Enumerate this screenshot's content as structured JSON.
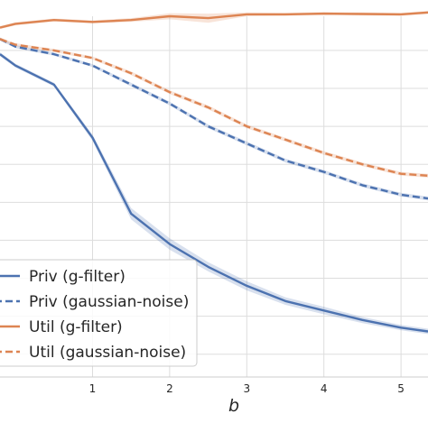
{
  "chart_data": {
    "type": "line",
    "xlabel": "b",
    "ylabel": "",
    "title": "",
    "xlim": [
      -0.2,
      5.35
    ],
    "ylim": [
      0.04,
      0.99
    ],
    "x_ticks": [
      1,
      2,
      3,
      4,
      5
    ],
    "y_grid": [
      0.1,
      0.2,
      0.3,
      0.4,
      0.5,
      0.6,
      0.7,
      0.8,
      0.9
    ],
    "grid": true,
    "legend_position": "lower-left",
    "x": [
      -0.2,
      0.0,
      0.5,
      1.0,
      1.5,
      2.0,
      2.5,
      3.0,
      3.5,
      4.0,
      4.5,
      5.0,
      5.35
    ],
    "series": [
      {
        "name": "Priv (g-filter)",
        "color": "#4c72b0",
        "dash": "solid",
        "values": [
          0.89,
          0.86,
          0.81,
          0.67,
          0.47,
          0.39,
          0.33,
          0.28,
          0.24,
          0.215,
          0.19,
          0.17,
          0.16
        ],
        "band": [
          0.005,
          0.005,
          0.005,
          0.008,
          0.015,
          0.015,
          0.012,
          0.012,
          0.01,
          0.01,
          0.008,
          0.007,
          0.007
        ]
      },
      {
        "name": "Priv (gaussian-noise)",
        "color": "#4c72b0",
        "dash": "dashed",
        "values": [
          0.93,
          0.91,
          0.89,
          0.86,
          0.81,
          0.76,
          0.7,
          0.655,
          0.61,
          0.58,
          0.545,
          0.52,
          0.51
        ],
        "band": [
          0.004,
          0.004,
          0.004,
          0.004,
          0.005,
          0.005,
          0.005,
          0.005,
          0.005,
          0.005,
          0.005,
          0.005,
          0.005
        ]
      },
      {
        "name": "Util (g-filter)",
        "color": "#dd8452",
        "dash": "solid",
        "values": [
          0.96,
          0.97,
          0.98,
          0.975,
          0.98,
          0.99,
          0.985,
          0.995,
          0.995,
          0.997,
          0.996,
          0.995,
          1.0
        ],
        "band": [
          0.004,
          0.004,
          0.004,
          0.004,
          0.005,
          0.008,
          0.012,
          0.005,
          0.004,
          0.004,
          0.004,
          0.004,
          0.004
        ]
      },
      {
        "name": "Util (gaussian-noise)",
        "color": "#dd8452",
        "dash": "dashed",
        "values": [
          0.93,
          0.915,
          0.9,
          0.88,
          0.84,
          0.79,
          0.75,
          0.7,
          0.665,
          0.63,
          0.6,
          0.575,
          0.57
        ],
        "band": [
          0.004,
          0.004,
          0.004,
          0.004,
          0.005,
          0.005,
          0.005,
          0.005,
          0.005,
          0.005,
          0.005,
          0.005,
          0.005
        ]
      }
    ]
  }
}
